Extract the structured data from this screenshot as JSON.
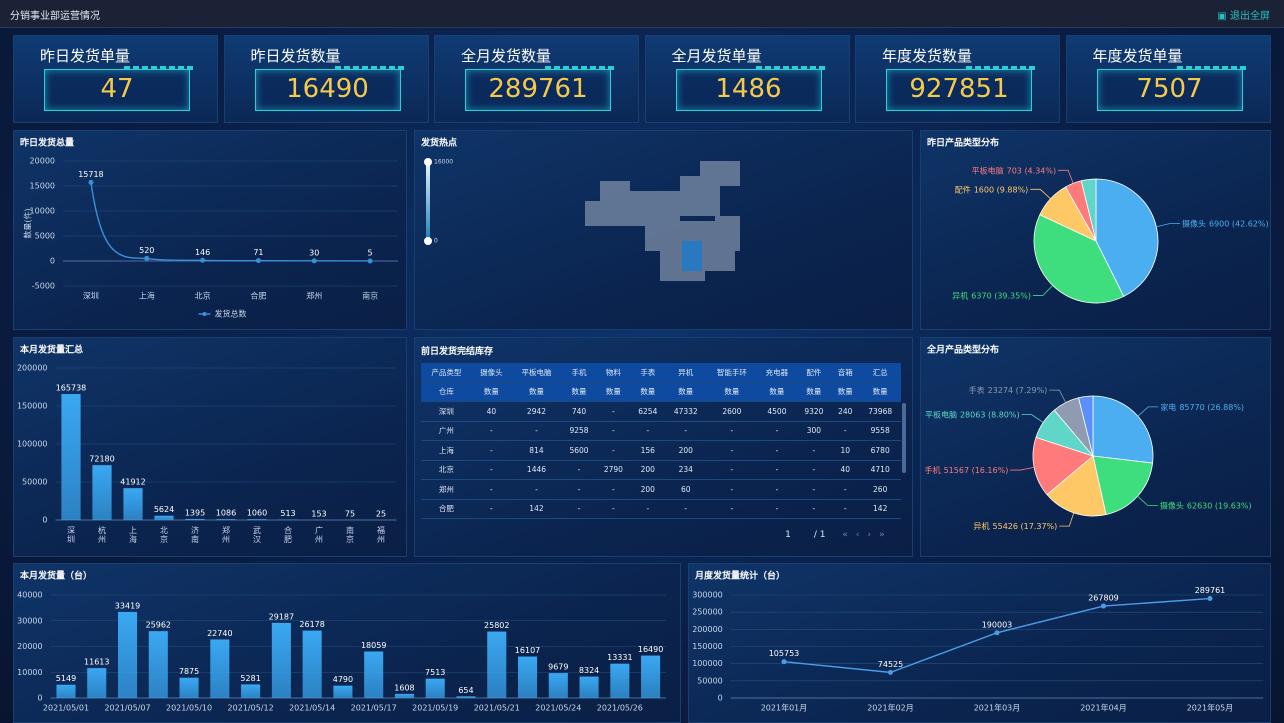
{
  "header": {
    "title": "分销事业部运营情况",
    "button": "退出全屏"
  },
  "kpis": [
    {
      "label": "昨日发货单量",
      "value": 47
    },
    {
      "label": "昨日发货数量",
      "value": 16490
    },
    {
      "label": "全月发货数量",
      "value": 289761
    },
    {
      "label": "全月发货单量",
      "value": 1486
    },
    {
      "label": "年度发货数量",
      "value": 927851
    },
    {
      "label": "年度发货单量",
      "value": 7507
    }
  ],
  "chart_data": [
    {
      "type": "line",
      "title": "昨日发货总量",
      "y_label": "数量(件)",
      "categories": [
        "深圳",
        "上海",
        "北京",
        "合肥",
        "郑州",
        "南京"
      ],
      "series": [
        {
          "name": "发货总数",
          "color": "#3a8fd8",
          "values": [
            15718,
            520,
            146,
            71,
            30,
            5
          ]
        }
      ],
      "ylim": [
        -5000,
        20000
      ],
      "yticks": [
        -5000,
        0,
        5000,
        10000,
        15000,
        20000
      ],
      "grid": true,
      "legend": "bottom"
    },
    {
      "type": "map",
      "title": "发货热点",
      "visual_range": [
        0,
        16000
      ]
    },
    {
      "type": "pie",
      "title": "昨日产品类型分布",
      "categories": [
        "摄像头",
        "异机",
        "配件",
        "平板电脑",
        null
      ],
      "values": [
        6900,
        6370,
        1600,
        703,
        617
      ],
      "value_labels": [
        "6900 (42.62%)",
        "6370 (39.35%)",
        "1600 (9.88%)",
        "703 (4.34%)",
        null
      ],
      "colors": [
        "#4aaef0",
        "#3ede7e",
        "#ffc866",
        "#ff7a7a",
        "#5fd6c8"
      ]
    },
    {
      "type": "bar",
      "title": "本月发货量汇总",
      "categories": [
        "深圳",
        "杭州",
        "上海",
        "北京",
        "济南",
        "郑州",
        "武汉",
        "合肥",
        "广州",
        "南京",
        "福州"
      ],
      "values": [
        165738,
        72180,
        41912,
        5624,
        1395,
        1086,
        1060,
        513,
        153,
        75,
        25
      ],
      "color": "#3aa8f2",
      "ylim": [
        0,
        200000
      ],
      "yticks": [
        0,
        50000,
        100000,
        150000,
        200000
      ],
      "grid": true
    },
    {
      "type": "pie",
      "title": "全月产品类型分布",
      "categories": [
        "家电",
        "摄像头",
        "异机",
        "手机",
        "平板电脑",
        "手表",
        null
      ],
      "values": [
        85770,
        62630,
        55426,
        51567,
        28063,
        23274,
        12355
      ],
      "value_labels": [
        "85770 (26.88%)",
        "62630 (19.63%)",
        "55426 (17.37%)",
        "51567 (16.16%)",
        "28063 (8.80%)",
        "23274 (7.29%)",
        null
      ],
      "colors": [
        "#4aaef0",
        "#3ede7e",
        "#ffc866",
        "#ff7a7a",
        "#5fd6c8",
        "#8e9bb0",
        "#5b8ff9"
      ]
    },
    {
      "type": "bar",
      "title": "本月发货量（台）",
      "categories": [
        "2021/05/01",
        null,
        "2021/05/07",
        null,
        "2021/05/10",
        null,
        "2021/05/12",
        null,
        "2021/05/14",
        null,
        "2021/05/17",
        null,
        "2021/05/19",
        null,
        "2021/05/21",
        null,
        "2021/05/24",
        null,
        "2021/05/26",
        null
      ],
      "values": [
        5149,
        11613,
        33419,
        25962,
        7875,
        22740,
        5281,
        29187,
        26178,
        4790,
        18059,
        1608,
        7513,
        654,
        25802,
        16107,
        9679,
        8324,
        13331,
        16490
      ],
      "color": "#3aa8f2",
      "ylim": [
        0,
        40000
      ],
      "yticks": [
        0,
        10000,
        20000,
        30000,
        40000
      ],
      "grid": true
    },
    {
      "type": "line",
      "title": "月度发货量统计（台）",
      "categories": [
        "2021年01月",
        "2021年02月",
        "2021年03月",
        "2021年04月",
        "2021年05月"
      ],
      "values": [
        105753,
        74525,
        190003,
        267809,
        289761
      ],
      "color": "#4a9ee8",
      "ylim": [
        0,
        300000
      ],
      "yticks": [
        0,
        50000,
        100000,
        150000,
        200000,
        250000,
        300000
      ],
      "grid": true
    }
  ],
  "table": {
    "title": "前日发货完结库存",
    "header": [
      [
        "产品类型",
        "摄像头",
        "平板电脑",
        "手机",
        "物料",
        "手表",
        "异机",
        "智能手环",
        "充电器",
        "配件",
        "音箱",
        "汇总"
      ],
      [
        "仓库",
        "数量",
        "数量",
        "数量",
        "数量",
        "数量",
        "数量",
        "数量",
        "数量",
        "数量",
        "数量",
        "数量"
      ]
    ],
    "rows": [
      [
        "深圳",
        40,
        2942,
        740,
        "-",
        6254,
        47332,
        2600,
        4500,
        9320,
        240,
        73968
      ],
      [
        "广州",
        "-",
        "-",
        9258,
        "-",
        "-",
        "-",
        "-",
        "-",
        300,
        "-",
        9558
      ],
      [
        "上海",
        "-",
        814,
        5600,
        "-",
        156,
        200,
        "-",
        "-",
        "-",
        10,
        6780
      ],
      [
        "北京",
        "-",
        1446,
        "-",
        2790,
        200,
        234,
        "-",
        "-",
        "-",
        40,
        4710
      ],
      [
        "郑州",
        "-",
        "-",
        "-",
        "-",
        200,
        60,
        "-",
        "-",
        "-",
        "-",
        260
      ],
      [
        "合肥",
        "-",
        142,
        "-",
        "-",
        "-",
        "-",
        "-",
        "-",
        "-",
        "-",
        142
      ]
    ],
    "pagination": {
      "current": 1,
      "total": "/ 1"
    }
  }
}
